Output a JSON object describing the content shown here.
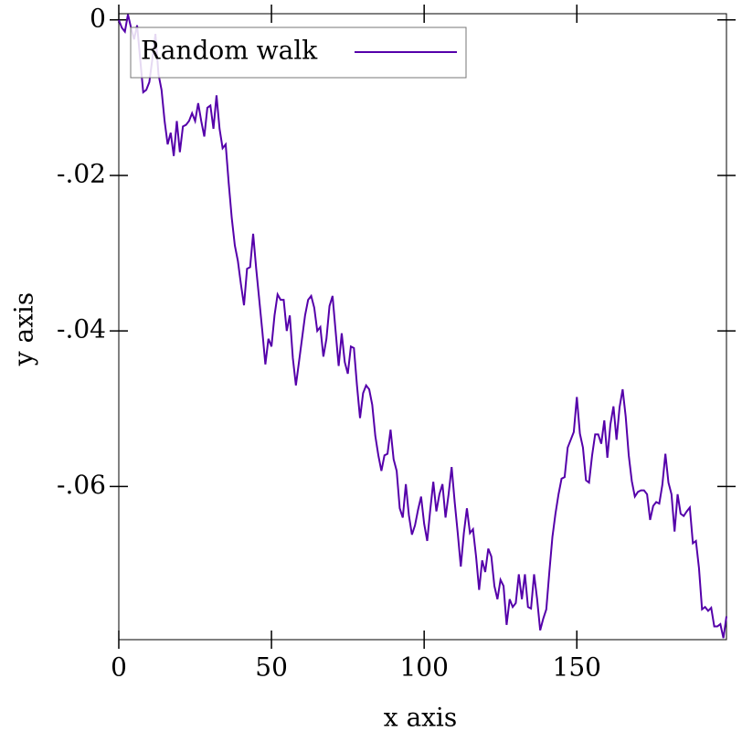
{
  "chart_data": {
    "type": "line",
    "xlabel": "x axis",
    "ylabel": "y axis",
    "x": [
      0,
      1,
      2,
      3,
      4,
      5,
      6,
      7,
      8,
      9,
      10,
      11,
      12,
      13,
      14,
      15,
      16,
      17,
      18,
      19,
      20,
      21,
      22,
      23,
      24,
      25,
      26,
      27,
      28,
      29,
      30,
      31,
      32,
      33,
      34,
      35,
      36,
      37,
      38,
      39,
      40,
      41,
      42,
      43,
      44,
      45,
      46,
      47,
      48,
      49,
      50,
      51,
      52,
      53,
      54,
      55,
      56,
      57,
      58,
      59,
      60,
      61,
      62,
      63,
      64,
      65,
      66,
      67,
      68,
      69,
      70,
      71,
      72,
      73,
      74,
      75,
      76,
      77,
      78,
      79,
      80,
      81,
      82,
      83,
      84,
      85,
      86,
      87,
      88,
      89,
      90,
      91,
      92,
      93,
      94,
      95,
      96,
      97,
      98,
      99,
      100,
      101,
      102,
      103,
      104,
      105,
      106,
      107,
      108,
      109,
      110,
      111,
      112,
      113,
      114,
      115,
      116,
      117,
      118,
      119,
      120,
      121,
      122,
      123,
      124,
      125,
      126,
      127,
      128,
      129,
      130,
      131,
      132,
      133,
      134,
      135,
      136,
      137,
      138,
      139,
      140,
      141,
      142,
      143,
      144,
      145,
      146,
      147,
      148,
      149,
      150,
      151,
      152,
      153,
      154,
      155,
      156,
      157,
      158,
      159,
      160,
      161,
      162,
      163,
      164,
      165,
      166,
      167,
      168,
      169,
      170,
      171,
      172,
      173,
      174,
      175,
      176,
      177,
      178,
      179,
      180,
      181,
      182,
      183,
      184,
      185,
      186,
      187,
      188,
      189,
      190,
      191,
      192,
      193,
      194,
      195,
      196,
      197,
      198,
      199
    ],
    "series": [
      {
        "name": "Random walk",
        "color": "#5500aa",
        "values": [
          0,
          -0.001,
          -0.0015,
          0.0007,
          -0.001,
          -0.0025,
          -0.0007,
          -0.005,
          -0.0093,
          -0.009,
          -0.008,
          -0.005,
          -0.0018,
          -0.007,
          -0.009,
          -0.013,
          -0.016,
          -0.0145,
          -0.0175,
          -0.013,
          -0.017,
          -0.0137,
          -0.0135,
          -0.013,
          -0.012,
          -0.013,
          -0.0107,
          -0.013,
          -0.015,
          -0.0113,
          -0.011,
          -0.014,
          -0.0097,
          -0.014,
          -0.0165,
          -0.016,
          -0.021,
          -0.0255,
          -0.029,
          -0.031,
          -0.034,
          -0.0367,
          -0.032,
          -0.0318,
          -0.0275,
          -0.032,
          -0.036,
          -0.04,
          -0.0443,
          -0.041,
          -0.042,
          -0.038,
          -0.0353,
          -0.036,
          -0.036,
          -0.04,
          -0.038,
          -0.0435,
          -0.047,
          -0.044,
          -0.041,
          -0.038,
          -0.036,
          -0.0355,
          -0.037,
          -0.04,
          -0.0395,
          -0.0433,
          -0.041,
          -0.0368,
          -0.0355,
          -0.04,
          -0.0445,
          -0.0403,
          -0.044,
          -0.0455,
          -0.042,
          -0.0422,
          -0.047,
          -0.0512,
          -0.048,
          -0.047,
          -0.0475,
          -0.0495,
          -0.0535,
          -0.056,
          -0.058,
          -0.056,
          -0.0558,
          -0.0527,
          -0.0565,
          -0.058,
          -0.0628,
          -0.064,
          -0.0597,
          -0.0637,
          -0.0662,
          -0.065,
          -0.063,
          -0.0613,
          -0.0648,
          -0.067,
          -0.063,
          -0.0594,
          -0.0632,
          -0.061,
          -0.0597,
          -0.064,
          -0.061,
          -0.0575,
          -0.062,
          -0.066,
          -0.0703,
          -0.066,
          -0.0628,
          -0.066,
          -0.0655,
          -0.069,
          -0.0733,
          -0.0695,
          -0.071,
          -0.068,
          -0.069,
          -0.0728,
          -0.0745,
          -0.072,
          -0.0728,
          -0.0778,
          -0.0745,
          -0.0755,
          -0.075,
          -0.0713,
          -0.0745,
          -0.0713,
          -0.0755,
          -0.0757,
          -0.0713,
          -0.0745,
          -0.0785,
          -0.077,
          -0.0758,
          -0.071,
          -0.0665,
          -0.0635,
          -0.061,
          -0.059,
          -0.0588,
          -0.055,
          -0.054,
          -0.053,
          -0.0485,
          -0.0532,
          -0.055,
          -0.0592,
          -0.0595,
          -0.056,
          -0.0533,
          -0.0533,
          -0.0545,
          -0.0515,
          -0.0563,
          -0.052,
          -0.0497,
          -0.054,
          -0.0498,
          -0.0475,
          -0.051,
          -0.056,
          -0.0593,
          -0.0613,
          -0.0607,
          -0.0605,
          -0.0605,
          -0.061,
          -0.0643,
          -0.0625,
          -0.062,
          -0.0622,
          -0.0598,
          -0.0558,
          -0.0595,
          -0.061,
          -0.0658,
          -0.061,
          -0.0635,
          -0.0638,
          -0.0632,
          -0.0627,
          -0.0673,
          -0.067,
          -0.0705,
          -0.0758,
          -0.0755,
          -0.076,
          -0.0756,
          -0.078,
          -0.078,
          -0.0777,
          -0.0795,
          -0.0767
        ]
      }
    ],
    "xlim": [
      0,
      199
    ],
    "ylim": [
      -0.0797,
      0.0008
    ],
    "xticks": [
      0,
      50,
      100,
      150
    ],
    "yticks": [
      0,
      {
        "value": -0.02,
        "label": "-.02"
      },
      {
        "value": -0.04,
        "label": "-.04"
      },
      {
        "value": -0.06,
        "label": "-.06"
      }
    ],
    "legend": "top-left"
  }
}
